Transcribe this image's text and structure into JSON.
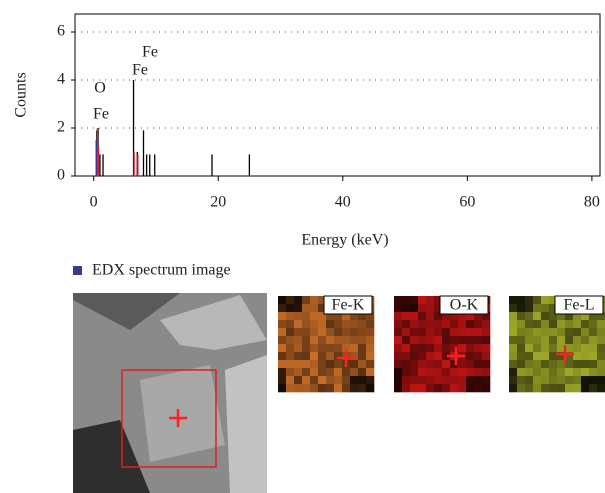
{
  "chart_data": {
    "type": "stem",
    "ylabel": "Counts",
    "xlabel": "Energy (keV)",
    "xlim": [
      -3,
      81.3
    ],
    "ylim": [
      0,
      6.75
    ],
    "xticks": [
      0,
      20,
      40,
      60,
      80
    ],
    "yticks": [
      0,
      2,
      4,
      6
    ],
    "grid": true,
    "series": [
      {
        "color": "#000000",
        "x": [
          0.5,
          0.7,
          1.0,
          1.5,
          6.4,
          7.0,
          8.0,
          8.5,
          9.0,
          9.8,
          19.0,
          25.0
        ],
        "values": [
          1.9,
          2.0,
          0.9,
          0.9,
          4.0,
          1.0,
          1.9,
          0.9,
          0.9,
          0.9,
          0.9,
          0.9
        ]
      },
      {
        "color": "#e0203a",
        "x": [
          0.6,
          0.8,
          6.5,
          7.1
        ],
        "values": [
          2.0,
          1.2,
          1.0,
          0.9
        ]
      },
      {
        "color": "#3a3aa0",
        "x": [
          0.4
        ],
        "values": [
          1.5
        ]
      }
    ],
    "annotations": [
      "O",
      "Fe",
      "Fe",
      "Fe"
    ]
  },
  "image_panel": {
    "caption": "EDX spectrum image",
    "maps": [
      {
        "label": "Fe-K"
      },
      {
        "label": "O-K"
      },
      {
        "label": "Fe-L"
      }
    ]
  }
}
